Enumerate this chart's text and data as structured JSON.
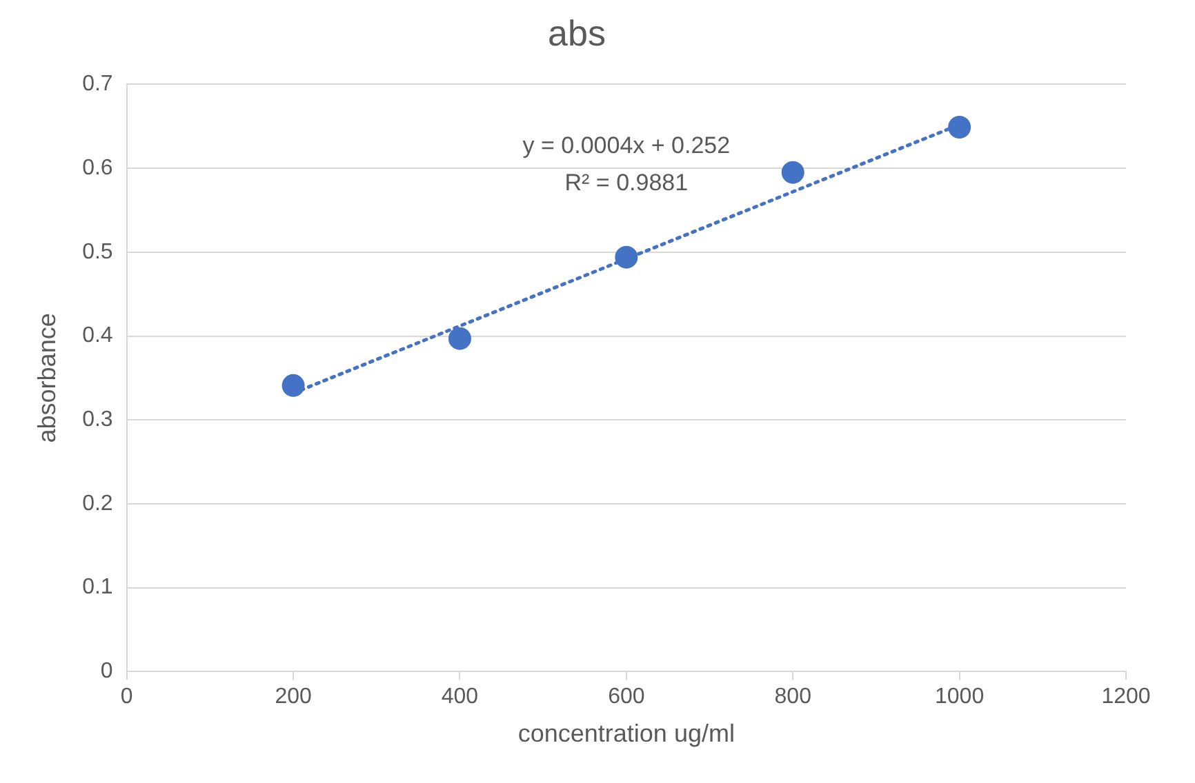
{
  "chart_data": {
    "type": "scatter",
    "title": "abs",
    "xlabel": "concentration ug/ml",
    "ylabel": "absorbance",
    "xlim": [
      0,
      1200
    ],
    "xticks": [
      0,
      200,
      400,
      600,
      800,
      1000,
      1200
    ],
    "ylim": [
      0,
      0.7
    ],
    "yticks": [
      0,
      0.1,
      0.2,
      0.3,
      0.4,
      0.5,
      0.6,
      0.7
    ],
    "grid": "y",
    "legend": false,
    "marker": "circle",
    "series": [
      {
        "color": "#4472c4",
        "x": [
          200,
          400,
          600,
          800,
          1000
        ],
        "values": [
          0.341,
          0.397,
          0.494,
          0.595,
          0.649
        ]
      },
      {
        "type": "line",
        "color": "#4472c4",
        "line_style": "dotted",
        "marker": "none",
        "x": [
          200,
          1000
        ],
        "values": [
          0.332,
          0.652
        ]
      }
    ],
    "annotations": [
      "y = 0.0004x + 0.252",
      "R² = 0.9881"
    ]
  }
}
